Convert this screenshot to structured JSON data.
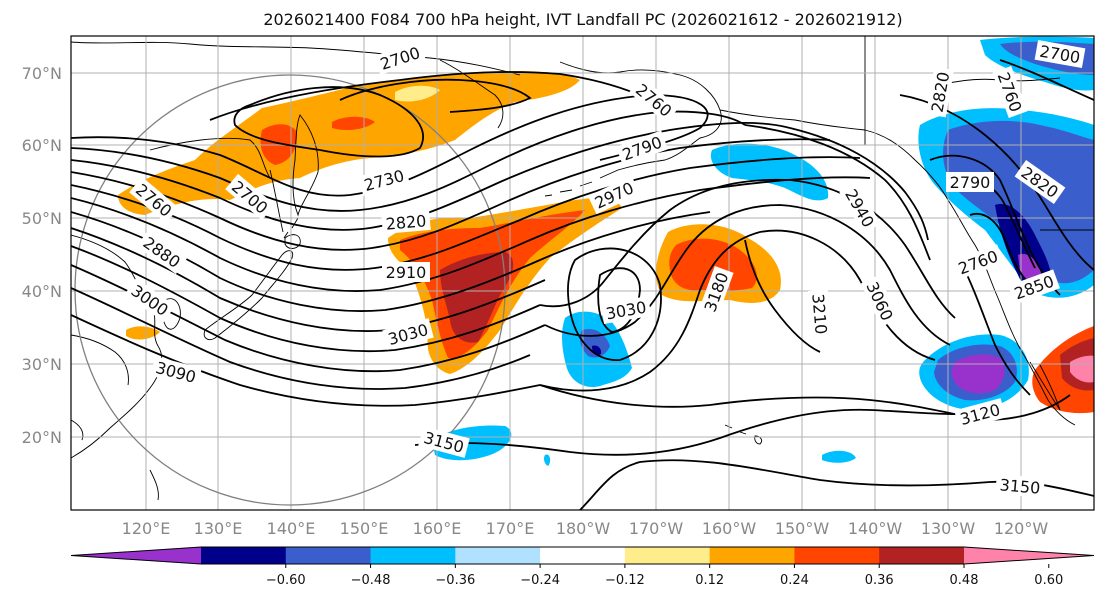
{
  "title": "2026021400 F084 700 hPa height, IVT Landfall PC (2026021612 - 2026021912)",
  "map": {
    "lat_labels": [
      "70°N",
      "60°N",
      "50°N",
      "40°N",
      "30°N",
      "20°N"
    ],
    "lon_labels": [
      "120°E",
      "130°E",
      "140°E",
      "150°E",
      "160°E",
      "170°E",
      "180°W",
      "170°W",
      "160°W",
      "150°W",
      "140°W",
      "130°W",
      "120°W"
    ],
    "contour_labels": [
      "2700",
      "2700",
      "2760",
      "2880",
      "3000",
      "3090",
      "2730",
      "2820",
      "2910",
      "3030",
      "2970",
      "2790",
      "2760",
      "3030",
      "3180",
      "3210",
      "3060",
      "2940",
      "2790",
      "2820",
      "2760",
      "2850",
      "3120",
      "3150",
      "3150",
      "2820",
      "2760",
      "2700"
    ]
  },
  "colorbar": {
    "ticks": [
      "−0.60",
      "−0.48",
      "−0.36",
      "−0.24",
      "−0.12",
      "0.12",
      "0.24",
      "0.36",
      "0.48",
      "0.60"
    ],
    "colors": [
      "#9932cc",
      "#00008b",
      "#3a5fcd",
      "#00bfff",
      "#b0e2ff",
      "#ffffff",
      "#ffec8b",
      "#ffa500",
      "#ff4500",
      "#b22222",
      "#ff82ab"
    ]
  }
}
